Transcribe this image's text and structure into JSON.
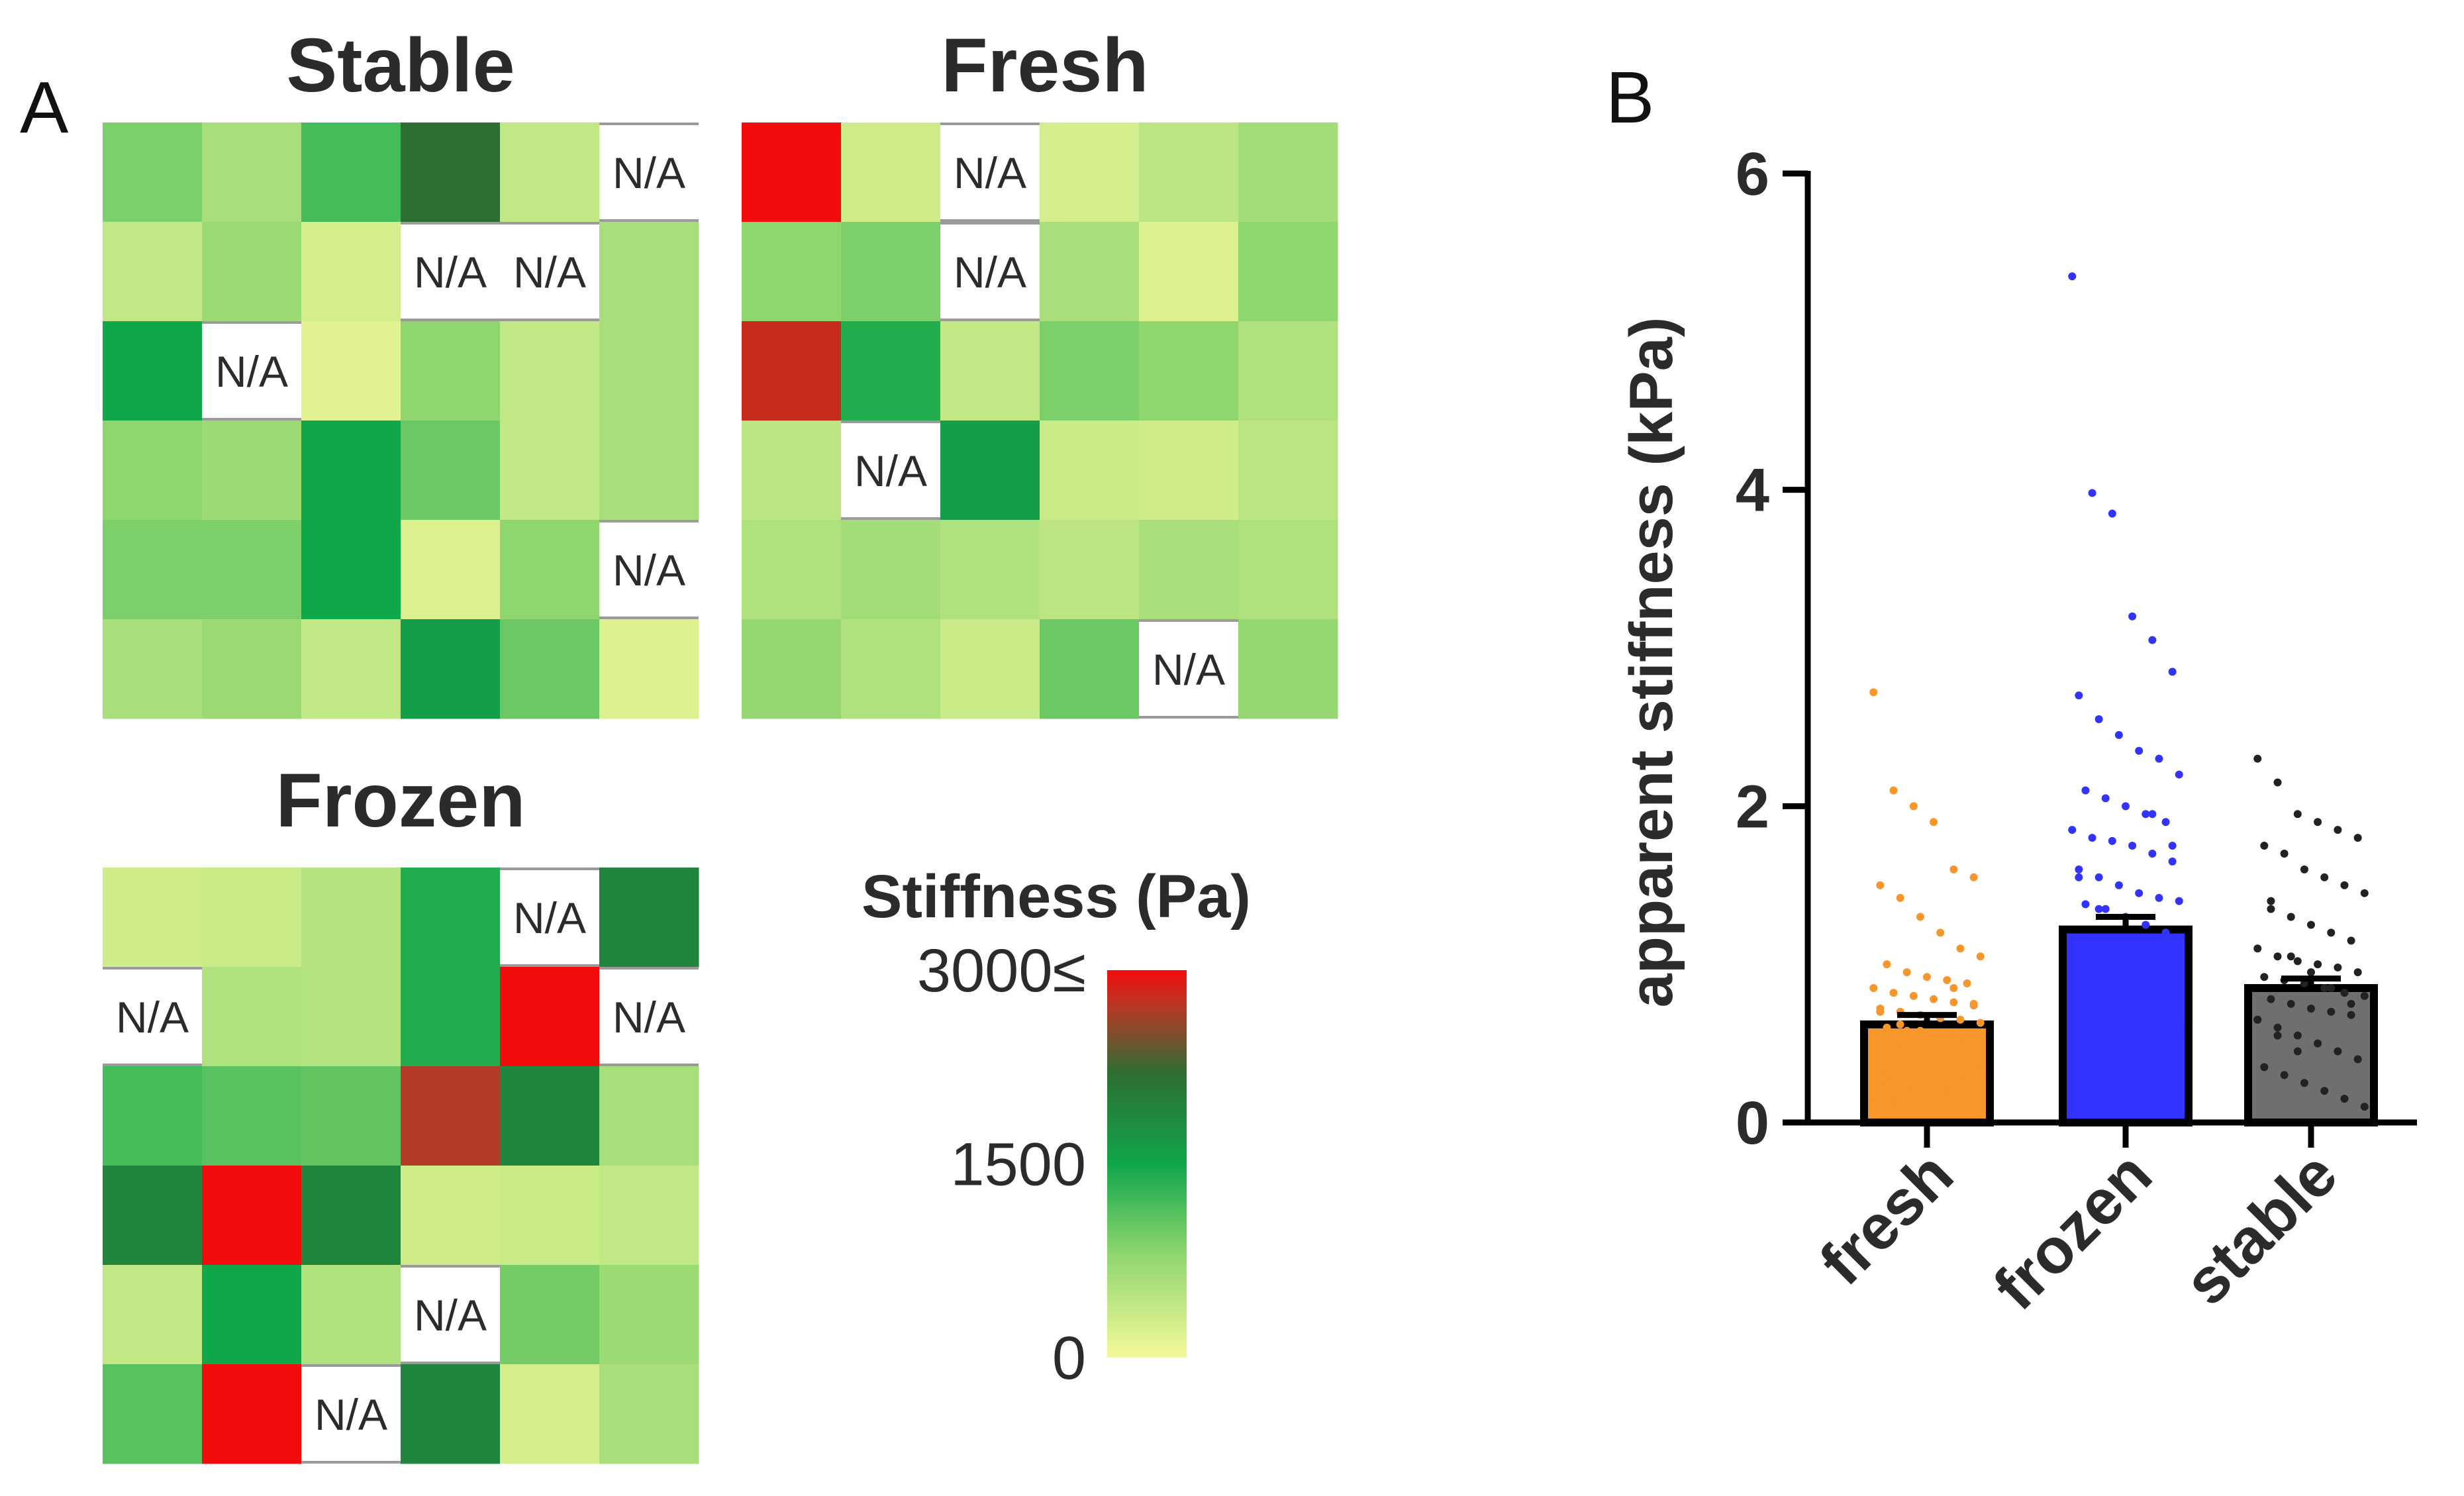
{
  "panel_labels": {
    "a": "A",
    "b": "B"
  },
  "heatmaps": {
    "na_label": "N/A",
    "stable": {
      "title": "Stable",
      "cells": [
        [
          900,
          600,
          1200,
          2200,
          400,
          null
        ],
        [
          400,
          700,
          250,
          null,
          null,
          600
        ],
        [
          1500,
          null,
          150,
          800,
          400,
          600
        ],
        [
          800,
          700,
          1500,
          1000,
          400,
          600
        ],
        [
          900,
          900,
          1500,
          200,
          800,
          null
        ],
        [
          600,
          700,
          400,
          1600,
          1000,
          200
        ]
      ]
    },
    "fresh": {
      "title": "Fresh",
      "cells": [
        [
          3000,
          300,
          null,
          250,
          450,
          650
        ],
        [
          800,
          900,
          null,
          600,
          200,
          800
        ],
        [
          2800,
          1400,
          400,
          900,
          800,
          550
        ],
        [
          450,
          null,
          1600,
          350,
          300,
          450
        ],
        [
          550,
          650,
          550,
          450,
          600,
          550
        ],
        [
          750,
          550,
          350,
          1000,
          null,
          750
        ]
      ]
    },
    "frozen": {
      "title": "Frozen",
      "cells": [
        [
          300,
          350,
          500,
          1400,
          null,
          1900
        ],
        [
          null,
          550,
          500,
          1400,
          3000,
          null
        ],
        [
          1200,
          1100,
          1050,
          2700,
          1900,
          600
        ],
        [
          1900,
          3000,
          1900,
          300,
          350,
          400
        ],
        [
          400,
          1500,
          550,
          null,
          950,
          700
        ],
        [
          1100,
          3000,
          null,
          1900,
          250,
          600
        ]
      ]
    }
  },
  "colorbar": {
    "title": "Stiffness (Pa)",
    "ticks": [
      {
        "value": 3000,
        "label": "3000≤"
      },
      {
        "value": 1500,
        "label": "1500"
      },
      {
        "value": 0,
        "label": "0"
      }
    ],
    "stops": [
      {
        "value": 0,
        "color": "#f5f99a"
      },
      {
        "value": 800,
        "color": "#8fd66f"
      },
      {
        "value": 1500,
        "color": "#10a64a"
      },
      {
        "value": 2200,
        "color": "#2e6e33"
      },
      {
        "value": 2700,
        "color": "#b23a26"
      },
      {
        "value": 3000,
        "color": "#f20d0d"
      }
    ]
  },
  "chart_data": {
    "type": "bar",
    "categories": [
      "fresh",
      "frozen",
      "stable"
    ],
    "values": [
      0.62,
      1.22,
      0.85
    ],
    "errors": [
      0.06,
      0.08,
      0.06
    ],
    "ylabel": "apparent stiffness (kPa)",
    "xlabel": "",
    "ylim": [
      0,
      6
    ],
    "yticks": [
      0,
      2,
      4,
      6
    ],
    "colors": {
      "fresh": "#f7962b",
      "frozen": "#3333ff",
      "stable": "#6f6f6f"
    },
    "points": {
      "fresh": [
        2.72,
        2.1,
        2.0,
        1.9,
        1.6,
        1.55,
        1.5,
        1.42,
        1.3,
        1.2,
        1.1,
        1.05,
        1.0,
        0.95,
        0.92,
        0.9,
        0.88,
        0.85,
        0.82,
        0.8,
        0.78,
        0.76,
        0.74,
        0.72,
        0.7,
        0.68,
        0.66,
        0.65,
        0.63,
        0.6,
        0.58,
        0.56,
        0.55,
        0.53,
        0.5,
        0.48,
        0.46,
        0.44,
        0.42,
        0.4,
        0.38,
        0.36,
        0.34,
        0.32,
        0.3,
        0.28,
        0.26,
        0.24,
        0.22,
        0.2,
        0.18,
        0.16,
        0.14,
        0.12,
        0.1,
        0.85,
        0.75,
        0.7,
        0.62,
        0.58,
        0.52,
        0.45,
        0.35,
        0.3,
        0.25
      ],
      "frozen": [
        5.35,
        3.98,
        3.85,
        3.2,
        3.05,
        2.85,
        2.7,
        2.55,
        2.45,
        2.35,
        2.3,
        2.2,
        2.1,
        2.05,
        2.0,
        1.95,
        1.9,
        1.85,
        1.8,
        1.78,
        1.75,
        1.7,
        1.65,
        1.6,
        1.55,
        1.5,
        1.45,
        1.42,
        1.4,
        1.38,
        1.35,
        1.3,
        1.25,
        1.2,
        1.15,
        1.1,
        1.05,
        1.0,
        0.95,
        0.9,
        0.85,
        0.8,
        0.75,
        0.7,
        0.65,
        0.6,
        0.55,
        0.5,
        0.45,
        0.4,
        0.35,
        0.3,
        0.25,
        0.2,
        0.15,
        1.95,
        1.75,
        1.55,
        1.35,
        1.15,
        0.95,
        0.75,
        0.55,
        0.35
      ],
      "stable": [
        2.3,
        2.15,
        1.95,
        1.9,
        1.85,
        1.8,
        1.75,
        1.7,
        1.6,
        1.55,
        1.5,
        1.45,
        1.4,
        1.3,
        1.25,
        1.2,
        1.15,
        1.1,
        1.05,
        1.02,
        1.0,
        0.98,
        0.95,
        0.92,
        0.9,
        0.88,
        0.85,
        0.82,
        0.8,
        0.78,
        0.75,
        0.72,
        0.7,
        0.68,
        0.65,
        0.6,
        0.55,
        0.5,
        0.45,
        0.4,
        0.35,
        0.3,
        0.25,
        0.2,
        0.15,
        0.1,
        1.35,
        1.05,
        0.95,
        0.85,
        0.75,
        0.65,
        0.55,
        0.45
      ]
    }
  }
}
